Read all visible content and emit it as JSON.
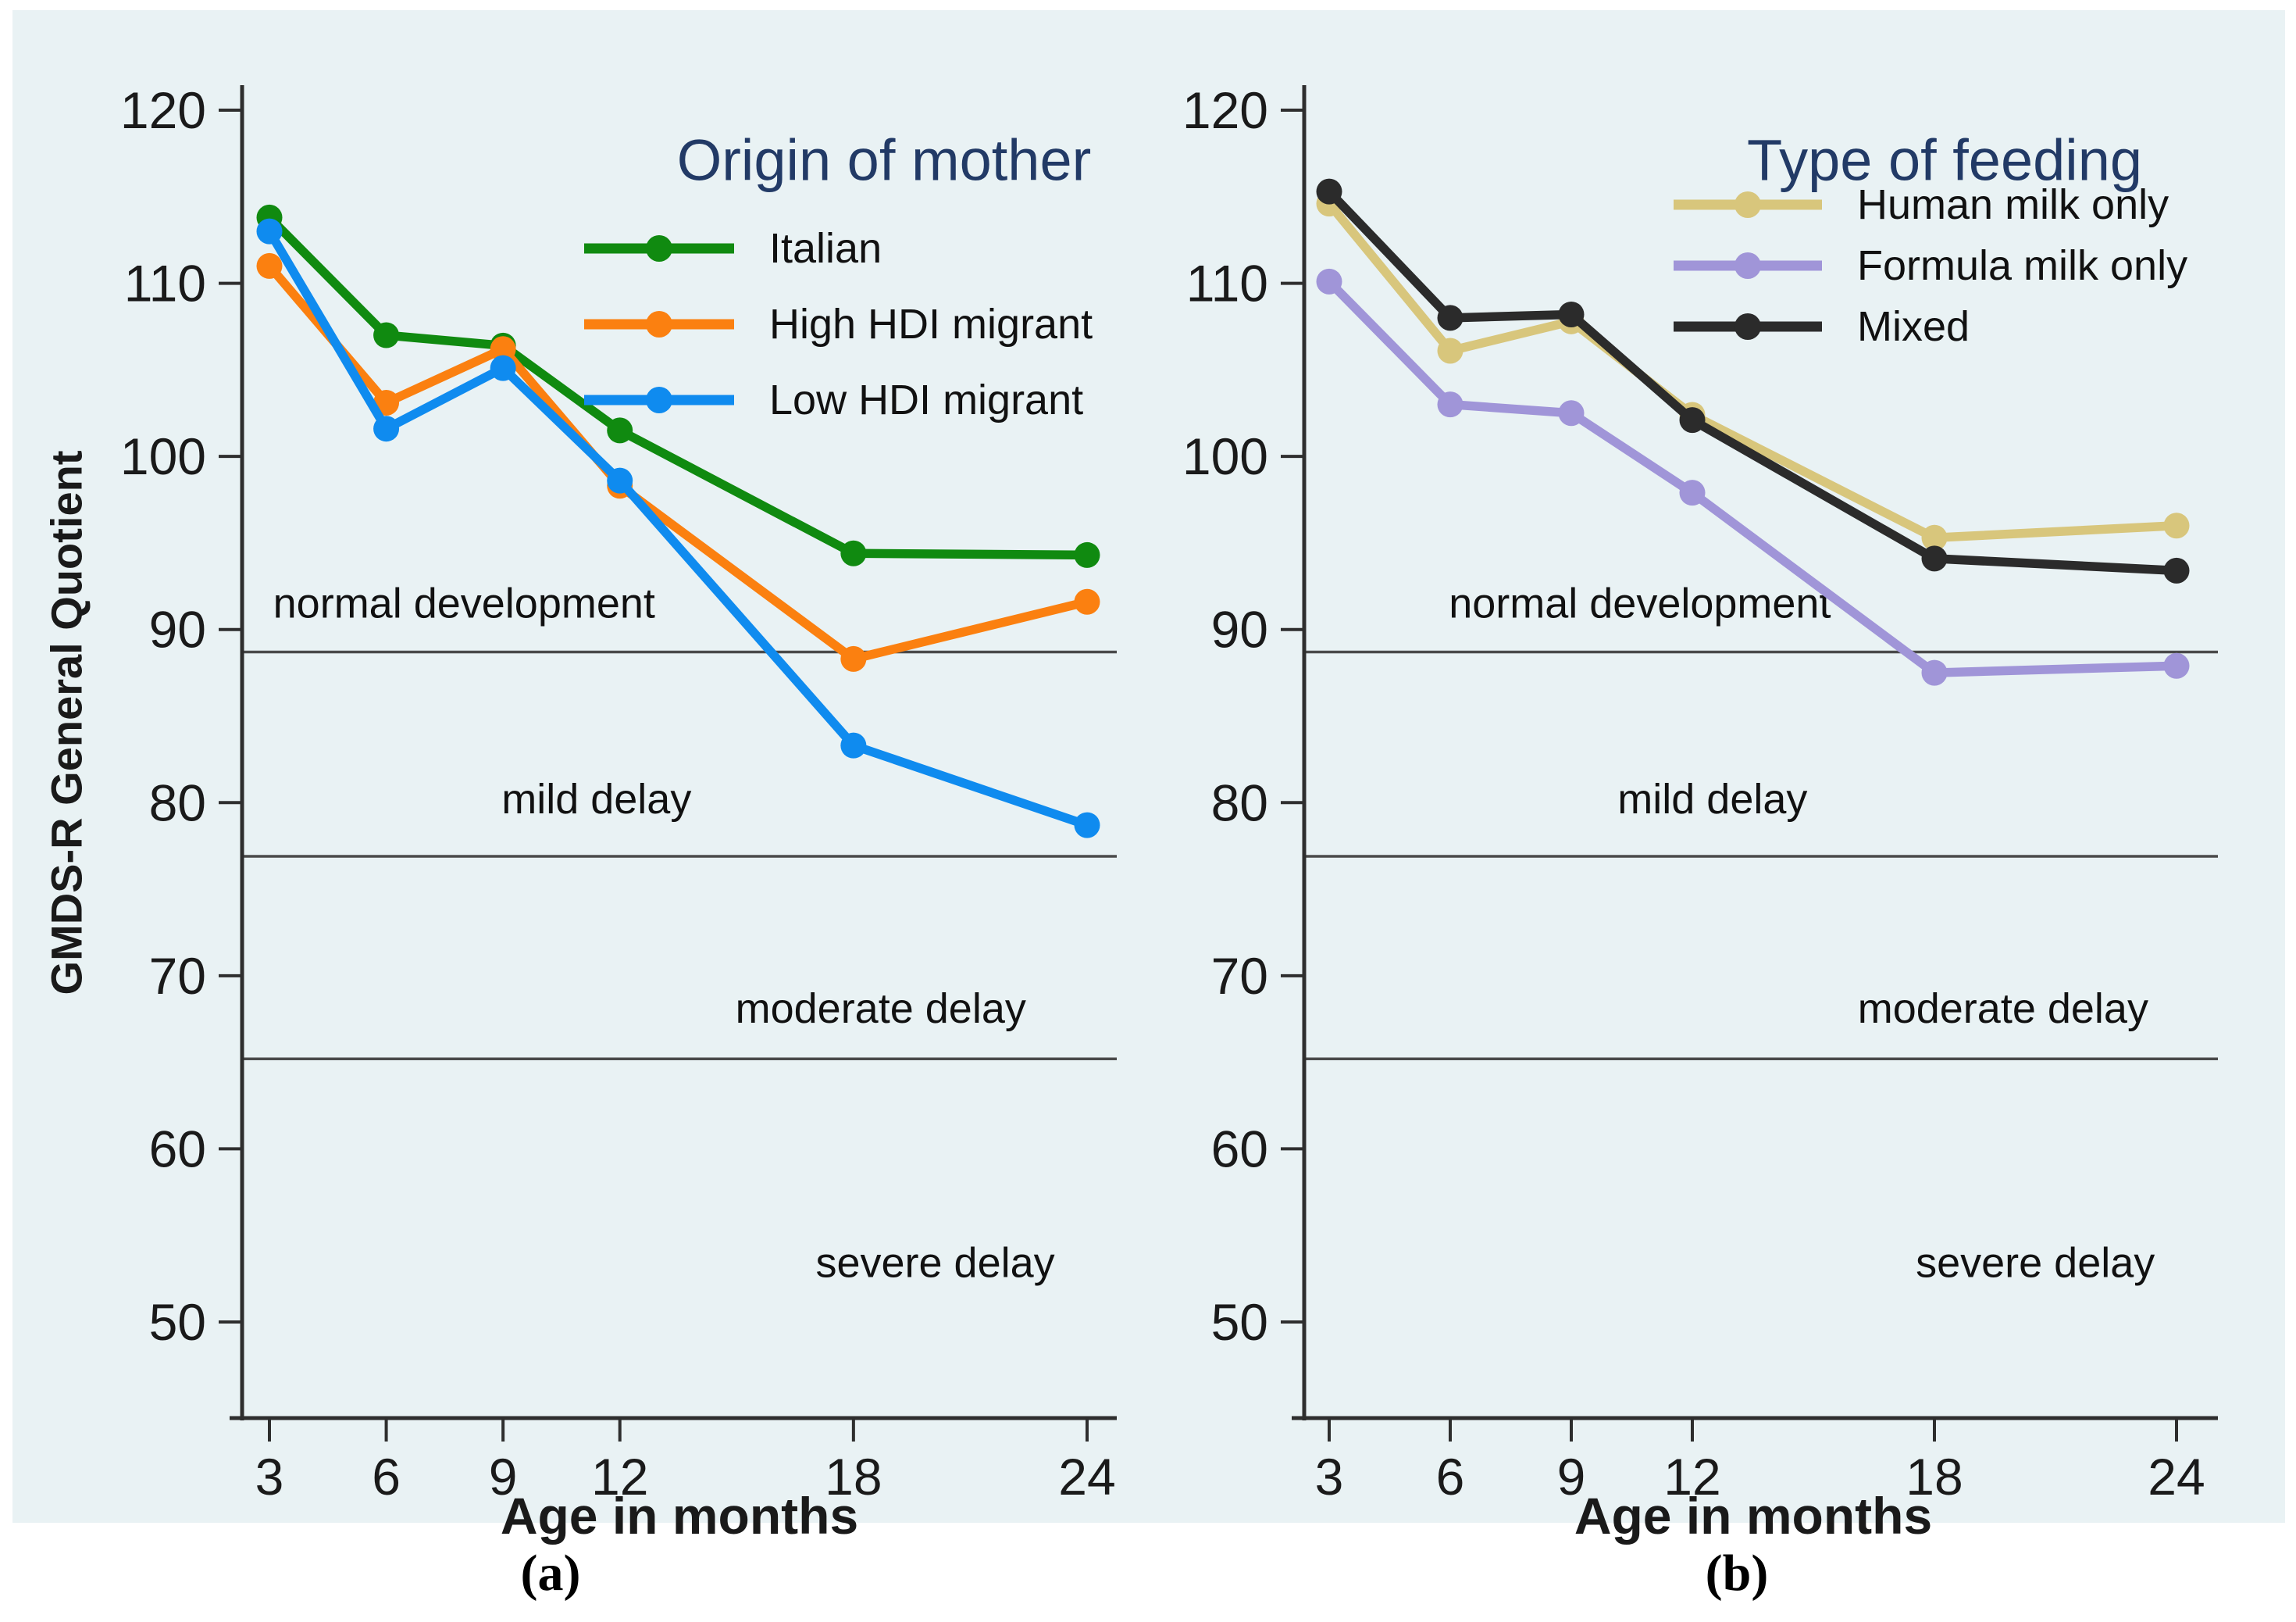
{
  "figure": {
    "plot_background": "#e9f2f4",
    "caption_a": "(a)",
    "caption_b": "(b)"
  },
  "axes": {
    "ylabel": "GMDS-R General Quotient",
    "xlabel": "Age in months",
    "y_ticks": [
      120,
      110,
      100,
      90,
      80,
      70,
      60,
      50
    ],
    "x_tick_labels": [
      "3",
      "6",
      "9",
      "12",
      "18",
      "24"
    ],
    "ylim": [
      44,
      121.5
    ],
    "grid": false,
    "axis_color": "#2e2e2e",
    "reference_line_color": "#4a4a4a",
    "tick_label_color": "#1a1a1a",
    "title_color": "#223a66"
  },
  "chart_data": [
    {
      "type": "line",
      "panel": "a",
      "legend_title": "Origin of mother",
      "legend_position": "top-right",
      "x": [
        3,
        6,
        9,
        12,
        18,
        24
      ],
      "reference_lines": [
        88.7,
        76.9,
        65.2
      ],
      "series": [
        {
          "name": "Italian",
          "color": "#108a10",
          "values": [
            113.8,
            107.0,
            106.4,
            101.5,
            94.4,
            94.3
          ]
        },
        {
          "name": "High HDI migrant",
          "color": "#fb8010",
          "values": [
            111.0,
            103.1,
            106.2,
            98.3,
            88.3,
            91.6
          ]
        },
        {
          "name": "Low HDI migrant",
          "color": "#0f8bef",
          "values": [
            113.0,
            101.6,
            105.1,
            98.6,
            83.3,
            78.7
          ]
        }
      ],
      "annotations": [
        {
          "text": "normal development",
          "month": 8.0,
          "value": 91.5
        },
        {
          "text": "mild delay",
          "month": 11.4,
          "value": 80.2
        },
        {
          "text": "moderate delay",
          "month": 18.7,
          "value": 68.1
        },
        {
          "text": "severe delay",
          "month": 20.1,
          "value": 53.4
        }
      ]
    },
    {
      "type": "line",
      "panel": "b",
      "legend_title": "Type of feeding",
      "legend_position": "top-right",
      "x": [
        3,
        6,
        9,
        12,
        18,
        24
      ],
      "reference_lines": [
        88.7,
        76.9,
        65.2
      ],
      "series": [
        {
          "name": "Human milk only",
          "color": "#d8c67c",
          "values": [
            114.6,
            106.1,
            107.8,
            102.4,
            95.3,
            96.0
          ]
        },
        {
          "name": "Formula milk only",
          "color": "#a095d8",
          "values": [
            110.1,
            103.0,
            102.5,
            97.9,
            87.5,
            87.9
          ]
        },
        {
          "name": "Mixed",
          "color": "#2b2b2b",
          "values": [
            115.3,
            108.0,
            108.2,
            102.1,
            94.1,
            93.4
          ]
        }
      ],
      "annotations": [
        {
          "text": "normal development",
          "month": 10.7,
          "value": 91.5
        },
        {
          "text": "mild delay",
          "month": 12.5,
          "value": 80.2
        },
        {
          "text": "moderate delay",
          "month": 19.7,
          "value": 68.1
        },
        {
          "text": "severe delay",
          "month": 20.5,
          "value": 53.4
        }
      ]
    }
  ]
}
